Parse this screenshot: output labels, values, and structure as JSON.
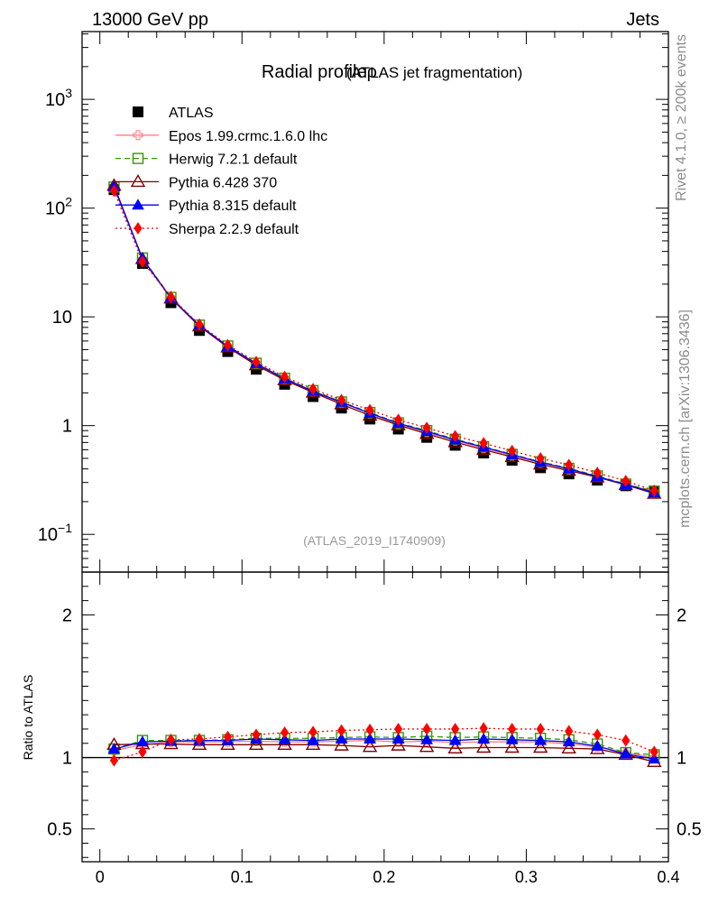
{
  "header": {
    "energy_label": "13000 GeV pp",
    "process_label": "Jets"
  },
  "side_labels": {
    "rivet": "Rivet 4.1.0, ≥ 200k events",
    "mcplots": "mcplots.cern.ch [arXiv:1306.3436]"
  },
  "chart_data": {
    "type": "line",
    "title": "Radial profileρ",
    "subtitle": "(ATLAS jet fragmentation)",
    "analysis_id": "(ATLAS_2019_I1740909)",
    "xlabel": "",
    "ylabel_main": "",
    "ylabel_ratio": "Ratio to ATLAS",
    "xlim": [
      -0.0125,
      0.4
    ],
    "ylim_main": [
      0.045,
      4200
    ],
    "ylim_ratio": [
      0.27,
      2.3
    ],
    "x_ticks": [
      0,
      0.1,
      0.2,
      0.3,
      0.4
    ],
    "x_tick_labels": [
      "0",
      "0.1",
      "0.2",
      "0.3",
      "0.4"
    ],
    "y_main_ticks": [
      {
        "value": 1000,
        "base": "10",
        "exp": "3",
        "label": ""
      },
      {
        "value": 100,
        "base": "10",
        "exp": "2",
        "label": ""
      },
      {
        "value": 10,
        "base": "",
        "exp": "",
        "label": "10"
      },
      {
        "value": 1,
        "base": "",
        "exp": "",
        "label": "1"
      },
      {
        "value": 0.1,
        "base": "10",
        "exp": "−1",
        "label": ""
      }
    ],
    "y_ratio_ticks": [
      {
        "value": 0.5,
        "label": "0.5"
      },
      {
        "value": 1,
        "label": "1"
      },
      {
        "value": 2,
        "label": "2"
      }
    ],
    "x": [
      0.01,
      0.03,
      0.05,
      0.07,
      0.09,
      0.11,
      0.13,
      0.15,
      0.17,
      0.19,
      0.21,
      0.23,
      0.25,
      0.27,
      0.29,
      0.31,
      0.33,
      0.35,
      0.37,
      0.39
    ],
    "reference": {
      "name": "ATLAS",
      "values": [
        148,
        31,
        13.5,
        7.5,
        4.8,
        3.3,
        2.4,
        1.85,
        1.45,
        1.15,
        0.93,
        0.78,
        0.66,
        0.56,
        0.48,
        0.41,
        0.36,
        0.315,
        0.28,
        0.245
      ]
    },
    "series": [
      {
        "name": "Epos 1.99.crmc.1.6.0 lhc",
        "color": "#ff7f7f",
        "dash": "solid",
        "marker": "open-cross",
        "values": [
          155,
          33.8,
          15.0,
          8.3,
          5.33,
          3.68,
          2.67,
          2.05,
          1.62,
          1.29,
          1.03,
          0.87,
          0.73,
          0.62,
          0.53,
          0.455,
          0.395,
          0.338,
          0.29,
          0.245
        ],
        "ratio": [
          1.05,
          1.09,
          1.11,
          1.11,
          1.11,
          1.115,
          1.11,
          1.11,
          1.115,
          1.12,
          1.11,
          1.115,
          1.105,
          1.11,
          1.11,
          1.11,
          1.095,
          1.075,
          1.035,
          1.0
        ]
      },
      {
        "name": "Herwig 7.2.1 default",
        "color": "#339900",
        "dash": "dashed",
        "marker": "open-square",
        "values": [
          156,
          34.8,
          15.1,
          8.4,
          5.4,
          3.75,
          2.73,
          2.1,
          1.65,
          1.32,
          1.06,
          0.9,
          0.75,
          0.64,
          0.545,
          0.465,
          0.405,
          0.345,
          0.29,
          0.25
        ],
        "ratio": [
          1.06,
          1.12,
          1.12,
          1.12,
          1.125,
          1.135,
          1.135,
          1.135,
          1.14,
          1.145,
          1.14,
          1.15,
          1.14,
          1.145,
          1.14,
          1.135,
          1.125,
          1.095,
          1.035,
          1.02
        ]
      },
      {
        "name": "Pythia 6.428 370",
        "color": "#800000",
        "dash": "solid",
        "marker": "open-triangle",
        "values": [
          161,
          34,
          14.8,
          8.2,
          5.25,
          3.6,
          2.62,
          2.02,
          1.57,
          1.24,
          1.01,
          0.84,
          0.705,
          0.6,
          0.515,
          0.44,
          0.385,
          0.335,
          0.285,
          0.237
        ],
        "ratio": [
          1.09,
          1.095,
          1.095,
          1.09,
          1.09,
          1.09,
          1.09,
          1.09,
          1.085,
          1.075,
          1.085,
          1.075,
          1.065,
          1.07,
          1.07,
          1.07,
          1.065,
          1.06,
          1.02,
          0.97
        ]
      },
      {
        "name": "Pythia 8.315 default",
        "color": "#0000ff",
        "dash": "solid",
        "marker": "filled-triangle",
        "values": [
          157,
          34.4,
          14.9,
          8.35,
          5.35,
          3.72,
          2.7,
          2.07,
          1.64,
          1.3,
          1.05,
          0.885,
          0.74,
          0.635,
          0.54,
          0.46,
          0.4,
          0.34,
          0.287,
          0.243
        ],
        "ratio": [
          1.06,
          1.11,
          1.115,
          1.12,
          1.12,
          1.13,
          1.125,
          1.12,
          1.13,
          1.13,
          1.13,
          1.125,
          1.12,
          1.13,
          1.125,
          1.12,
          1.11,
          1.08,
          1.025,
          0.99
        ]
      },
      {
        "name": "Sherpa 2.2.9 default",
        "color": "#ff0000",
        "dash": "dotted",
        "marker": "filled-diamond",
        "values": [
          144,
          32.2,
          15.2,
          8.5,
          5.5,
          3.85,
          2.81,
          2.17,
          1.72,
          1.39,
          1.13,
          0.955,
          0.8,
          0.69,
          0.585,
          0.5,
          0.435,
          0.368,
          0.31,
          0.252
        ],
        "ratio": [
          0.98,
          1.04,
          1.125,
          1.13,
          1.145,
          1.16,
          1.175,
          1.18,
          1.19,
          1.195,
          1.2,
          1.2,
          1.2,
          1.205,
          1.2,
          1.2,
          1.185,
          1.16,
          1.12,
          1.04
        ]
      }
    ]
  }
}
